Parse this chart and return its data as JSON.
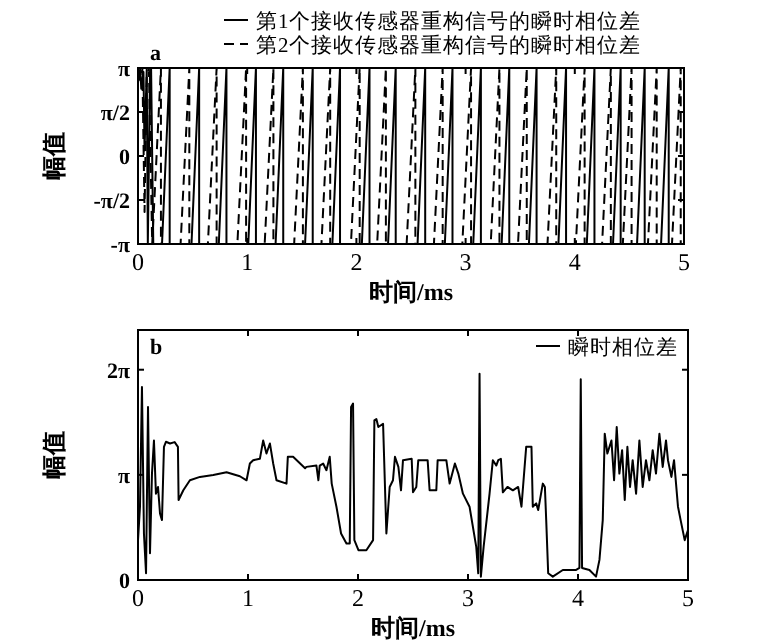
{
  "chart_data": [
    {
      "type": "line",
      "xlabel": "时间/ms",
      "ylabel": "幅值",
      "annotations": [
        "a"
      ],
      "legend": "top",
      "grid": false,
      "xlim": [
        0,
        5
      ],
      "xticks": [
        0,
        1,
        2,
        3,
        4,
        5
      ],
      "ylim": [
        -3.1416,
        3.1416
      ],
      "yticks": [
        {
          "value": -3.1416,
          "label": "-π"
        },
        {
          "value": -1.5708,
          "label": "-π/2"
        },
        0,
        {
          "value": 1.5708,
          "label": "π/2"
        },
        {
          "value": 3.1416,
          "label": "π"
        }
      ],
      "series": [
        {
          "name": "第1个接收传感器重构信号的瞬时相位差",
          "color": "#000000",
          "line_style": "solid",
          "x": [
            0,
            0.02,
            0.03,
            0.05,
            0.06,
            0.08,
            0.09,
            0.11,
            0.12,
            0.14,
            0.22,
            0.29,
            0.29,
            0.49,
            0.56,
            0.56,
            0.74,
            0.81,
            0.81,
            1.01,
            1.08,
            1.08,
            1.26,
            1.33,
            1.33,
            1.53,
            1.6,
            1.6,
            1.78,
            1.85,
            1.85,
            2.05,
            2.12,
            2.12,
            2.29,
            2.36,
            2.36,
            2.56,
            2.63,
            2.63,
            2.81,
            2.88,
            2.88,
            3.07,
            3.14,
            3.14,
            3.33,
            3.4,
            3.4,
            3.58,
            3.65,
            3.65,
            3.85,
            3.92,
            3.92,
            4.11,
            4.18,
            4.18,
            4.35,
            4.42,
            4.42,
            4.57,
            4.64,
            4.64,
            4.79,
            4.86,
            4.86
          ],
          "values": [
            2.8,
            3.1,
            2.4,
            3.0,
            0.2,
            3.1,
            -3.1,
            2.9,
            3.1,
            -3.14,
            -3.14,
            3.14,
            -3.14,
            -3.14,
            3.14,
            -3.14,
            -3.14,
            3.14,
            -3.14,
            -3.14,
            3.14,
            -3.14,
            -3.14,
            3.14,
            -3.14,
            -3.14,
            3.14,
            -3.14,
            -3.14,
            3.14,
            -3.14,
            -3.14,
            3.14,
            -3.14,
            -3.14,
            3.14,
            -3.14,
            -3.14,
            3.14,
            -3.14,
            -3.14,
            3.14,
            -3.14,
            -3.14,
            3.14,
            -3.14,
            -3.14,
            3.14,
            -3.14,
            -3.14,
            3.14,
            -3.14,
            -3.14,
            3.14,
            -3.14,
            -3.14,
            3.14,
            -3.14,
            -3.14,
            3.14,
            -3.14,
            -3.14,
            3.14,
            -3.14,
            -3.14,
            3.14,
            -3.14
          ]
        },
        {
          "name": "第2个接收传感器重构信号的瞬时相位差",
          "color": "#000000",
          "line_style": "dashed",
          "x": [
            0,
            0.02,
            0.04,
            0.06,
            0.08,
            0.1,
            0.13,
            0.21,
            0.21,
            0.39,
            0.47,
            0.47,
            0.64,
            0.72,
            0.72,
            0.91,
            0.99,
            0.99,
            1.16,
            1.24,
            1.24,
            1.43,
            1.51,
            1.51,
            1.68,
            1.76,
            1.76,
            1.95,
            2.03,
            2.03,
            2.19,
            2.27,
            2.27,
            2.46,
            2.54,
            2.54,
            2.71,
            2.79,
            2.79,
            2.97,
            3.05,
            3.05,
            3.23,
            3.31,
            3.31,
            3.48,
            3.56,
            3.56,
            3.75,
            3.83,
            3.83,
            4.01,
            4.09,
            4.09,
            4.25,
            4.33,
            4.33,
            4.44,
            4.52,
            4.52,
            4.67,
            4.75,
            4.75,
            4.89,
            4.97,
            4.97
          ],
          "values": [
            3.0,
            2.7,
            3.1,
            -2.0,
            2.9,
            3.1,
            -3.14,
            3.14,
            -3.14,
            -3.14,
            3.14,
            -3.14,
            -3.14,
            3.14,
            -3.14,
            -3.14,
            3.14,
            -3.14,
            -3.14,
            3.14,
            -3.14,
            -3.14,
            3.14,
            -3.14,
            -3.14,
            3.14,
            -3.14,
            -3.14,
            3.14,
            -3.14,
            -3.14,
            3.14,
            -3.14,
            -3.14,
            3.14,
            -3.14,
            -3.14,
            3.14,
            -3.14,
            -3.14,
            3.14,
            -3.14,
            -3.14,
            3.14,
            -3.14,
            -3.14,
            3.14,
            -3.14,
            -3.14,
            3.14,
            -3.14,
            -3.14,
            3.14,
            -3.14,
            -3.14,
            3.14,
            -3.14,
            -3.14,
            3.14,
            -3.14,
            -3.14,
            3.14,
            -3.14,
            -3.14,
            3.14,
            -3.14
          ]
        }
      ]
    },
    {
      "type": "line",
      "xlabel": "时间/ms",
      "ylabel": "幅值",
      "annotations": [
        "b"
      ],
      "legend": "top right",
      "grid": false,
      "xlim": [
        0,
        5
      ],
      "xticks": [
        0,
        1,
        2,
        3,
        4,
        5
      ],
      "ylim": [
        0,
        7.47
      ],
      "yticks": [
        0,
        {
          "value": 3.1416,
          "label": "π"
        },
        {
          "value": 6.2832,
          "label": "2π"
        }
      ],
      "series": [
        {
          "name": "瞬时相位差",
          "color": "#000000",
          "line_style": "solid",
          "x": [
            0,
            0.018,
            0.036,
            0.054,
            0.073,
            0.091,
            0.109,
            0.127,
            0.145,
            0.163,
            0.182,
            0.2,
            0.218,
            0.236,
            0.254,
            0.291,
            0.333,
            0.363,
            0.369,
            0.412,
            0.472,
            0.563,
            0.684,
            0.805,
            0.926,
            0.987,
            1.017,
            1.047,
            1.108,
            1.138,
            1.168,
            1.199,
            1.229,
            1.259,
            1.35,
            1.362,
            1.41,
            1.519,
            1.531,
            1.622,
            1.64,
            1.652,
            1.683,
            1.713,
            1.743,
            1.761,
            1.804,
            1.846,
            1.895,
            1.925,
            1.937,
            1.955,
            1.967,
            2.004,
            2.076,
            2.137,
            2.149,
            2.167,
            2.185,
            2.228,
            2.258,
            2.288,
            2.318,
            2.336,
            2.367,
            2.391,
            2.409,
            2.488,
            2.5,
            2.53,
            2.548,
            2.633,
            2.651,
            2.712,
            2.724,
            2.803,
            2.833,
            2.881,
            2.912,
            2.954,
            3.014,
            3.075,
            3.093,
            3.105,
            3.117,
            3.142,
            3.196,
            3.226,
            3.257,
            3.275,
            3.299,
            3.317,
            3.359,
            3.408,
            3.456,
            3.468,
            3.486,
            3.529,
            3.577,
            3.589,
            3.62,
            3.638,
            3.68,
            3.699,
            3.711,
            3.729,
            3.771,
            3.862,
            3.983,
            4.013,
            4.025,
            4.037,
            4.104,
            4.164,
            4.195,
            4.225,
            4.243,
            4.267,
            4.304,
            4.328,
            4.352,
            4.376,
            4.401,
            4.425,
            4.449,
            4.473,
            4.497,
            4.528,
            4.558,
            4.588,
            4.618,
            4.649,
            4.679,
            4.709,
            4.74,
            4.77,
            4.8,
            4.818,
            4.849,
            4.873,
            4.909,
            4.933,
            4.97,
            5.0
          ],
          "values": [
            1.19,
            2.19,
            5.77,
            1.39,
            0.2,
            5.17,
            0.8,
            3.18,
            4.17,
            2.58,
            2.78,
            1.99,
            1.79,
            3.98,
            4.13,
            4.08,
            4.12,
            3.98,
            2.39,
            2.68,
            2.98,
            3.08,
            3.14,
            3.22,
            3.1,
            2.98,
            3.48,
            3.58,
            3.62,
            4.17,
            3.78,
            4.08,
            3.48,
            2.98,
            2.88,
            3.68,
            3.68,
            3.34,
            3.38,
            3.42,
            2.98,
            3.42,
            3.48,
            3.28,
            3.68,
            2.88,
            2.19,
            1.39,
            1.09,
            1.09,
            5.17,
            5.27,
            1.19,
            0.89,
            0.89,
            1.19,
            4.77,
            4.81,
            4.57,
            4.67,
            1.39,
            2.78,
            2.98,
            3.68,
            3.38,
            2.68,
            3.58,
            3.62,
            2.62,
            2.78,
            3.58,
            3.58,
            2.68,
            2.68,
            3.58,
            3.58,
            2.88,
            3.48,
            3.18,
            2.58,
            2.19,
            0.99,
            0.2,
            6.16,
            0.1,
            0.99,
            2.58,
            3.58,
            3.42,
            3.58,
            3.62,
            2.62,
            2.78,
            2.68,
            2.78,
            2.54,
            2.19,
            3.98,
            3.98,
            2.19,
            2.29,
            2.09,
            2.88,
            2.78,
            1.79,
            0.2,
            0.1,
            0.3,
            0.3,
            0.36,
            6.0,
            0.36,
            0.3,
            0.1,
            0.6,
            1.79,
            4.37,
            3.78,
            4.17,
            2.98,
            4.57,
            3.18,
            3.88,
            2.39,
            3.98,
            2.78,
            3.58,
            2.58,
            4.17,
            2.78,
            3.58,
            2.98,
            3.88,
            3.18,
            4.37,
            3.38,
            4.17,
            3.58,
            3.08,
            3.58,
            2.19,
            1.79,
            1.19,
            1.49
          ]
        }
      ]
    }
  ]
}
